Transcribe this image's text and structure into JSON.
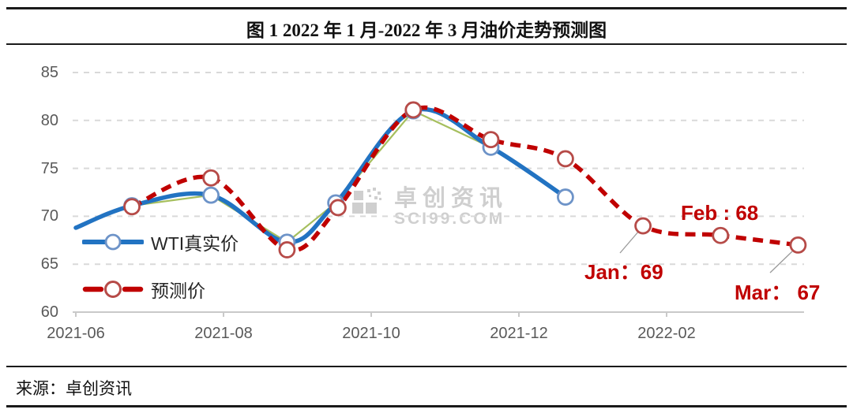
{
  "title": "图 1 2022 年 1 月-2022 年 3 月油价走势预测图",
  "source": "来源：卓创资讯",
  "watermark": {
    "line1": "卓创资讯",
    "line2": "SCI99.COM"
  },
  "colors": {
    "actual_line": "#2273C2",
    "forecast_line": "#C00000",
    "connector_line": "#A6BF5E",
    "actual_marker_ring": "#6D93C8",
    "forecast_marker_ring": "#B64B48",
    "grid_line": "#D9D9D9",
    "axis_line": "#C9C9C9",
    "axis_label": "#595959",
    "annotation_text": "#C00000",
    "legend_text": "#262626",
    "watermark_gray": "#B3B3B3",
    "leader_line": "#9A9A9A"
  },
  "chart_data": {
    "type": "line",
    "title": "图 1 2022 年 1 月-2022 年 3 月油价走势预测图",
    "xlabel": "",
    "ylabel": "",
    "x_axis": {
      "unit": "months since 2021-06",
      "tick_positions_months": [
        0,
        2,
        4,
        6,
        8
      ],
      "tick_labels": [
        "2021-06",
        "2021-08",
        "2021-10",
        "2021-12",
        "2022-02"
      ],
      "range_months": [
        0,
        9.84
      ]
    },
    "y_axis": {
      "min": 60,
      "max": 85,
      "step": 5,
      "tick_labels": [
        "60",
        "65",
        "70",
        "75",
        "80",
        "85"
      ]
    },
    "grid": "horizontal-dashed",
    "legend": {
      "position": "inside-left",
      "entries": [
        "WTI真实价",
        "预测价"
      ]
    },
    "series": [
      {
        "name": "WTI真实价",
        "style": "smooth-solid",
        "x": [
          0,
          0.76,
          1.83,
          2.86,
          3.52,
          4.57,
          5.62,
          6.63
        ],
        "values": [
          68.8,
          71.1,
          72.2,
          67.3,
          71.4,
          81.0,
          77.2,
          72.0
        ]
      },
      {
        "name": "预测价",
        "style": "smooth-dashed",
        "x": [
          0.76,
          1.83,
          2.86,
          3.55,
          4.57,
          5.62,
          6.63,
          7.68,
          8.73,
          9.78
        ],
        "values": [
          71.0,
          74.0,
          66.5,
          70.9,
          81.1,
          78.0,
          76.0,
          69.0,
          68.0,
          67.0
        ]
      },
      {
        "name": "",
        "note": "thin green straight-segment underlay of WTI真实价 (no legend entry)",
        "style": "straight-thin",
        "x": [
          0.76,
          1.83,
          2.86,
          3.52,
          4.57,
          5.62,
          6.63
        ],
        "values": [
          71.1,
          72.2,
          67.3,
          71.4,
          81.0,
          77.2,
          72.0
        ]
      }
    ],
    "annotations": [
      {
        "text": "Jan：69",
        "month": "2022-01",
        "value": 69
      },
      {
        "text": "Feb : 68",
        "month": "2022-02",
        "value": 68
      },
      {
        "text": "Mar： 67",
        "month": "2022-03",
        "value": 67
      }
    ]
  }
}
